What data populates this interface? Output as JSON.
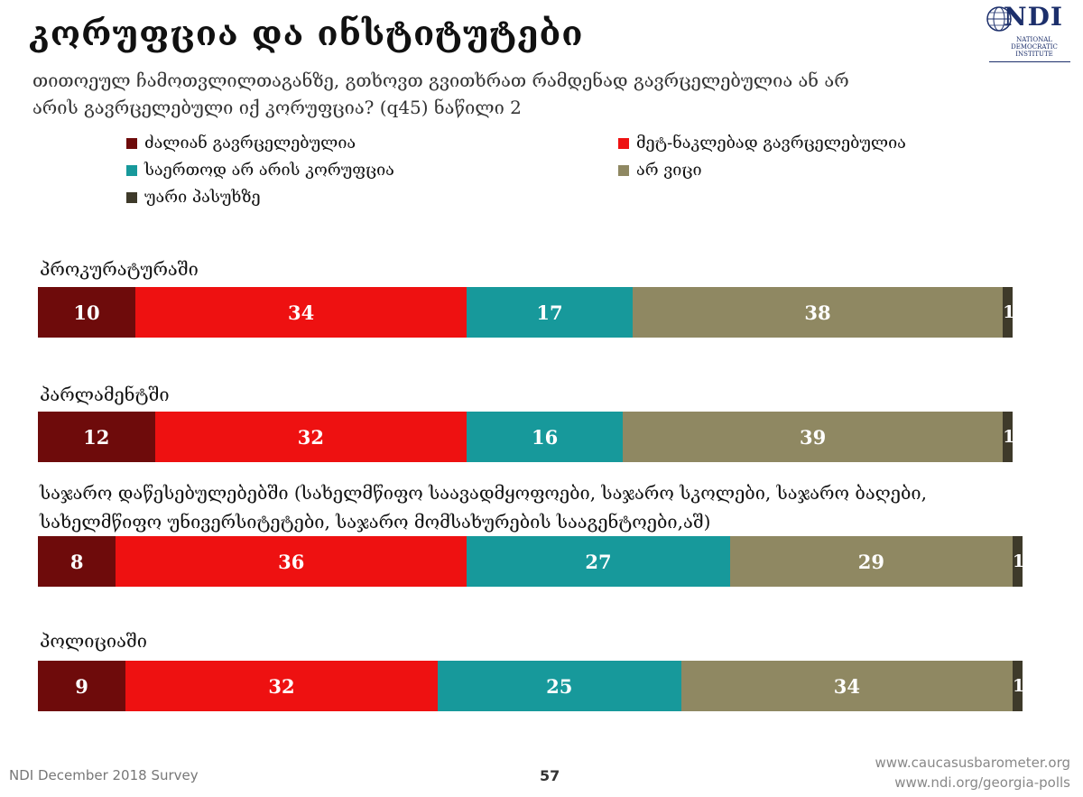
{
  "header": {
    "title": "კორუფცია და ინსტიტუტები",
    "subtitle": "თითოეულ ჩამოთვლილთაგანზე, გთხოვთ გვითხრათ რამდენად გავრცელებულია ან არ არის გავრცელებული იქ კორუფცია? (q45) ნაწილი 2"
  },
  "logo": {
    "mark": "NDI",
    "sub": "National Democratic Institute"
  },
  "colors": {
    "very_widespread": "#6e0b0b",
    "somewhat": "#ee1111",
    "none": "#17999b",
    "dont_know": "#8f8862",
    "refused": "#3e3a2a"
  },
  "chart_data": {
    "type": "bar",
    "orientation": "horizontal",
    "stacked": true,
    "xlim": [
      0,
      100
    ],
    "categories": [
      "პროკურატურაში",
      "პარლამენტში",
      "საჯარო დაწესებულებებში (სახელმწიფო საავადმყოფოები, საჯარო სკოლები, საჯარო ბაღები, სახელმწიფო უნივერსიტეტები, საჯარო მომსახურების სააგენტოები,აშ)",
      "პოლიციაში"
    ],
    "series": [
      {
        "name": "ძალიან გავრცელებულია",
        "color": "#6e0b0b",
        "values": [
          10,
          12,
          8,
          9
        ]
      },
      {
        "name": "მეტ-ნაკლებად გავრცელებულია",
        "color": "#ee1111",
        "values": [
          34,
          32,
          36,
          32
        ]
      },
      {
        "name": "საერთოდ არ არის კორუფცია",
        "color": "#17999b",
        "values": [
          17,
          16,
          27,
          25
        ]
      },
      {
        "name": "არ ვიცი",
        "color": "#8f8862",
        "values": [
          38,
          39,
          29,
          34
        ]
      },
      {
        "name": "უარი პასუხზე",
        "color": "#3e3a2a",
        "values": [
          1,
          1,
          1,
          1
        ]
      }
    ],
    "legend_position": "top"
  },
  "footer": {
    "survey": "NDI December 2018 Survey",
    "page": "57",
    "link1": "www.caucasusbarometer.org",
    "link2": "www.ndi.org/georgia-polls"
  }
}
